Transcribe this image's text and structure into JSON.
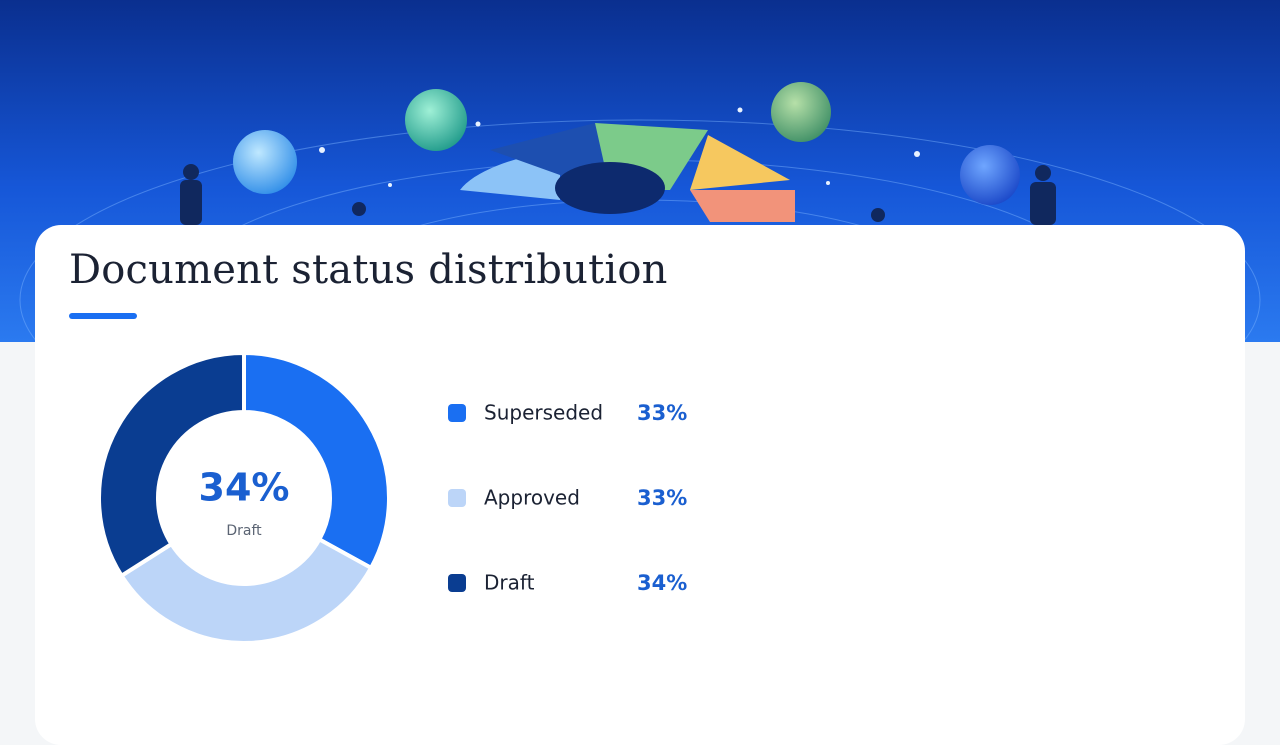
{
  "chart_data": {
    "type": "donut",
    "title": "Document status distribution",
    "categories": [
      "Superseded",
      "Approved",
      "Draft"
    ],
    "values": [
      33,
      33,
      34
    ],
    "value_labels": [
      "33%",
      "33%",
      "34%"
    ],
    "colors": [
      "#1a6ff2",
      "#bcd5f8",
      "#0a3d91"
    ],
    "highlight": 2
  }
}
